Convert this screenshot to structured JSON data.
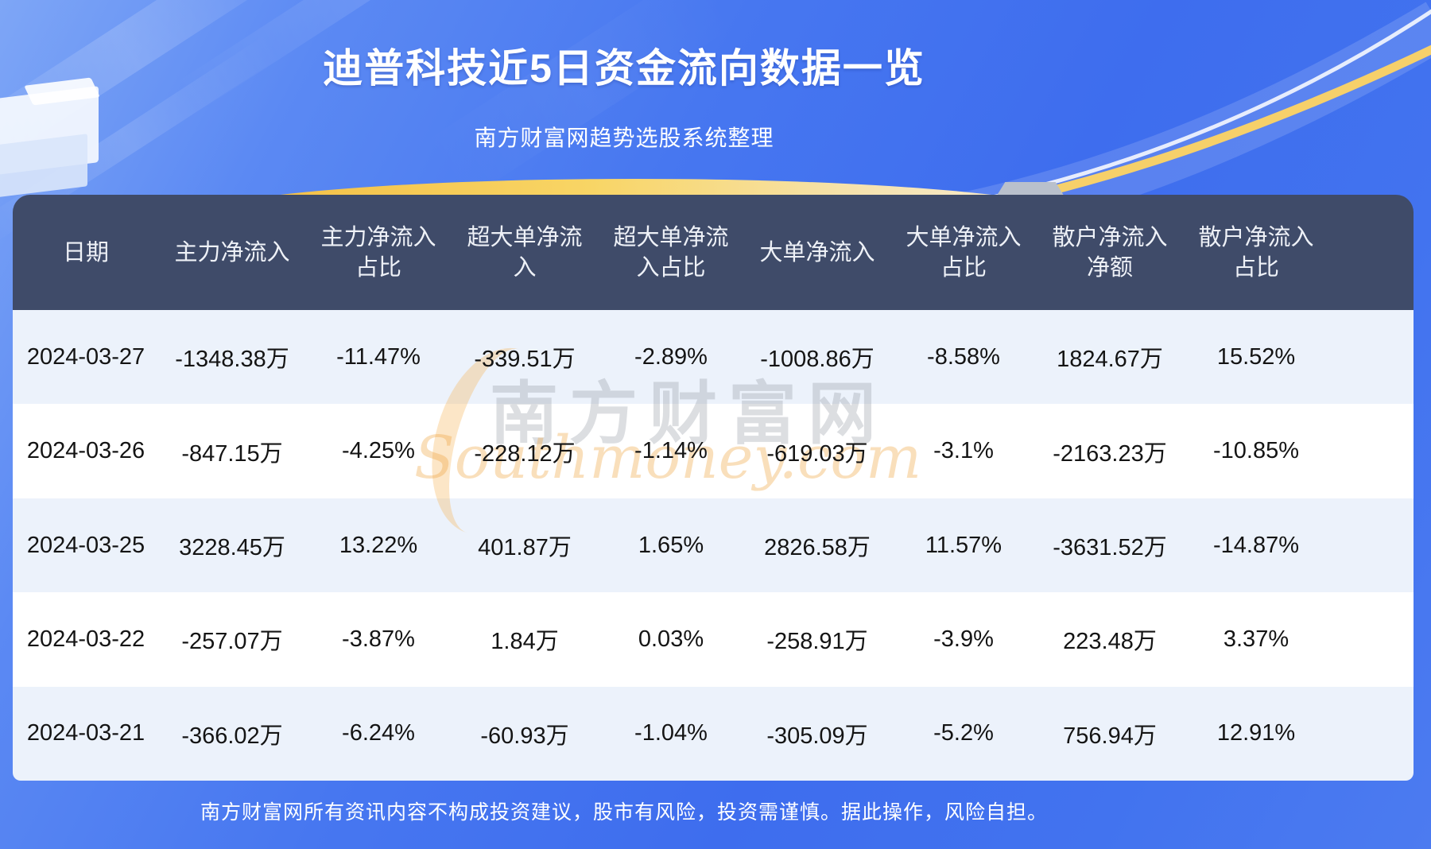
{
  "header": {
    "title": "迪普科技近5日资金流向数据一览",
    "subtitle": "南方财富网趋势选股系统整理"
  },
  "chart_data": {
    "type": "table",
    "title": "迪普科技近5日资金流向数据一览",
    "subtitle": "南方财富网趋势选股系统整理",
    "columns": [
      "日期",
      "主力净流入",
      "主力净流入占比",
      "超大单净流入",
      "超大单净流入占比",
      "大单净流入",
      "大单净流入占比",
      "散户净流入净额",
      "散户净流入占比"
    ],
    "rows": [
      [
        "2024-03-27",
        "-1348.38万",
        "-11.47%",
        "-339.51万",
        "-2.89%",
        "-1008.86万",
        "-8.58%",
        "1824.67万",
        "15.52%"
      ],
      [
        "2024-03-26",
        "-847.15万",
        "-4.25%",
        "-228.12万",
        "-1.14%",
        "-619.03万",
        "-3.1%",
        "-2163.23万",
        "-10.85%"
      ],
      [
        "2024-03-25",
        "3228.45万",
        "13.22%",
        "401.87万",
        "1.65%",
        "2826.58万",
        "11.57%",
        "-3631.52万",
        "-14.87%"
      ],
      [
        "2024-03-22",
        "-257.07万",
        "-3.87%",
        "1.84万",
        "0.03%",
        "-258.91万",
        "-3.9%",
        "223.48万",
        "3.37%"
      ],
      [
        "2024-03-21",
        "-366.02万",
        "-6.24%",
        "-60.93万",
        "-1.04%",
        "-305.09万",
        "-5.2%",
        "756.94万",
        "12.91%"
      ]
    ]
  },
  "table_display": {
    "header_lines": [
      [
        "日期"
      ],
      [
        "主力净流入"
      ],
      [
        "主力净流入",
        "占比"
      ],
      [
        "超大单净流",
        "入"
      ],
      [
        "超大单净流",
        "入占比"
      ],
      [
        "大单净流入"
      ],
      [
        "大单净流入",
        "占比"
      ],
      [
        "散户净流入",
        "净额"
      ],
      [
        "散户净流入",
        "占比"
      ]
    ]
  },
  "watermark": {
    "cn": "南方财富网",
    "en": "Southmoney.com"
  },
  "footer": {
    "disclaimer": "南方财富网所有资讯内容不构成投资建议，股市有风险，投资需谨慎。据此操作，风险自担。"
  },
  "colors": {
    "page-blue": "#4273ef",
    "header-bg": "#3f4b69",
    "row-alt": "#ecf2fb",
    "gold": "#f2ba3f",
    "text-dark": "#141414"
  }
}
